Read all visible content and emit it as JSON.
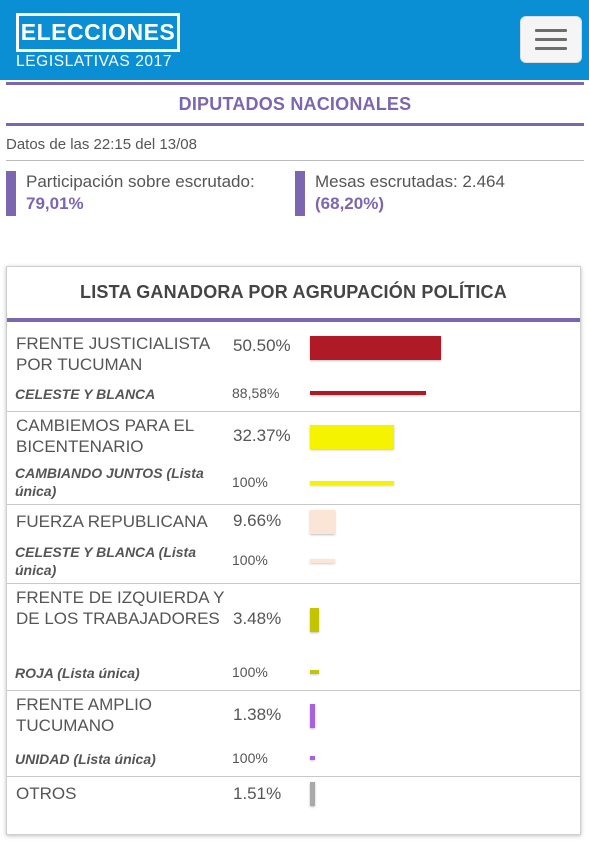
{
  "header": {
    "logo_title": "ELECCIONES",
    "logo_subtitle": "LEGISLATIVAS 2017"
  },
  "section": {
    "title": "DIPUTADOS NACIONALES",
    "data_time": "Datos de las 22:15 del 13/08"
  },
  "stats": {
    "participation_label": "Participación sobre escrutado:",
    "participation_value": "79,01%",
    "mesas_label": "Mesas escrutadas: 2.464",
    "mesas_value": "(68,20%)"
  },
  "results": {
    "title": "LISTA GANADORA POR AGRUPACIÓN POLÍTICA",
    "parties": [
      {
        "name": "FRENTE JUSTICIALISTA POR TUCUMAN",
        "percent": "50.50%",
        "value": 50.5,
        "color": "#b01a26",
        "list_name": "CELESTE Y BLANCA",
        "list_percent": "88,58%",
        "list_value": 88.58
      },
      {
        "name": "CAMBIEMOS PARA EL BICENTENARIO",
        "percent": "32.37%",
        "value": 32.37,
        "color": "#f6f300",
        "list_name": "CAMBIANDO JUNTOS (Lista única)",
        "list_percent": "100%",
        "list_value": 100
      },
      {
        "name": "FUERZA REPUBLICANA",
        "percent": "9.66%",
        "value": 9.66,
        "color": "#fbe5d6",
        "list_name": "CELESTE Y BLANCA (Lista única)",
        "list_percent": "100%",
        "list_value": 100
      },
      {
        "name": "FRENTE DE IZQUIERDA Y DE LOS TRABAJADORES",
        "percent": "3.48%",
        "value": 3.48,
        "color": "#c5c400",
        "list_name": "ROJA (Lista única)",
        "list_percent": "100%",
        "list_value": 100
      },
      {
        "name": "FRENTE AMPLIO TUCUMANO",
        "percent": "1.38%",
        "value": 1.38,
        "color": "#a563e0",
        "list_name": "UNIDAD (Lista única)",
        "list_percent": "100%",
        "list_value": 100
      },
      {
        "name": "OTROS",
        "percent": "1.51%",
        "value": 1.51,
        "color": "#a9a9a9"
      }
    ]
  }
}
